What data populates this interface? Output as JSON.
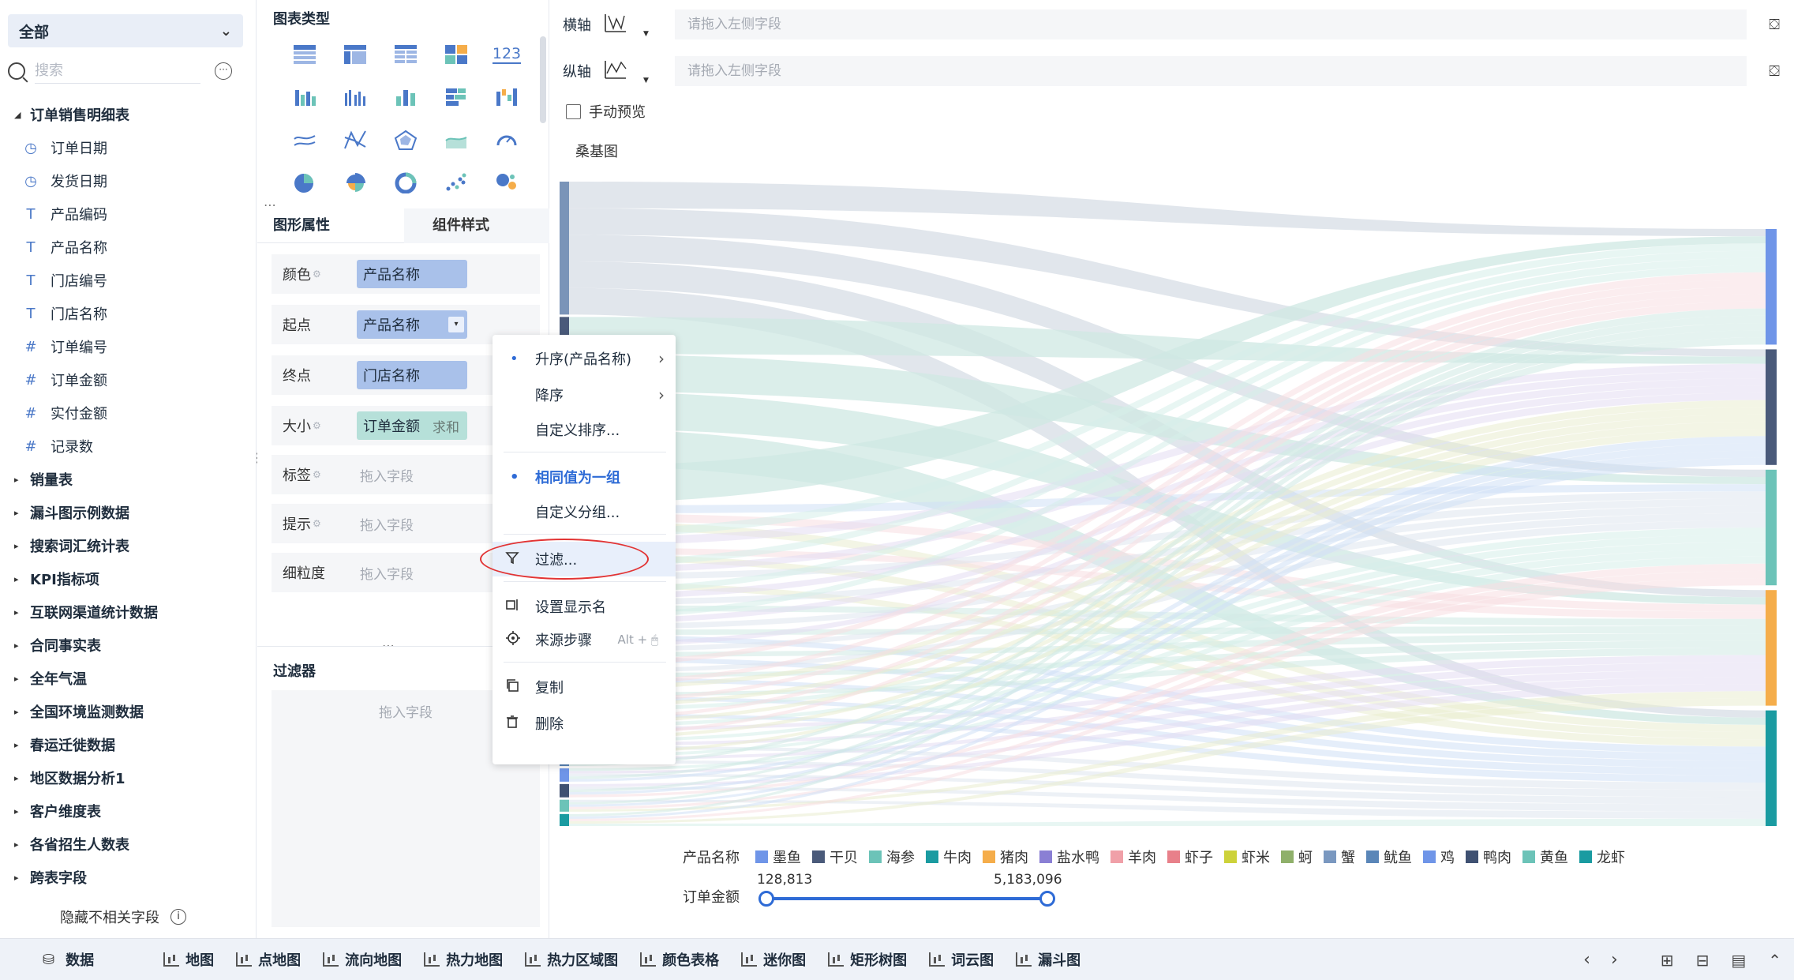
{
  "datasource": {
    "selected": "全部"
  },
  "search": {
    "placeholder": "搜索"
  },
  "tree": {
    "open_group": "订单销售明细表",
    "fields": [
      {
        "icon": "clock-icon",
        "glyph": "◷",
        "label": "订单日期"
      },
      {
        "icon": "clock-icon",
        "glyph": "◷",
        "label": "发货日期"
      },
      {
        "icon": "text-type-icon",
        "glyph": "T",
        "label": "产品编码"
      },
      {
        "icon": "text-type-icon",
        "glyph": "T",
        "label": "产品名称"
      },
      {
        "icon": "text-type-icon",
        "glyph": "T",
        "label": "门店编号"
      },
      {
        "icon": "text-type-icon",
        "glyph": "T",
        "label": "门店名称"
      },
      {
        "icon": "number-type-icon",
        "glyph": "#",
        "label": "订单编号"
      },
      {
        "icon": "number-type-icon",
        "glyph": "#",
        "label": "订单金额"
      },
      {
        "icon": "number-type-icon",
        "glyph": "#",
        "label": "实付金额"
      },
      {
        "icon": "number-type-icon",
        "glyph": "#",
        "label": "记录数"
      }
    ],
    "groups": [
      "销量表",
      "漏斗图示例数据",
      "搜索词汇统计表",
      "KPI指标项",
      "互联网渠道统计数据",
      "合同事实表",
      "全年气温",
      "全国环境监测数据",
      "春运迁徙数据",
      "地区数据分析1",
      "客户维度表",
      "各省招生人数表",
      "跨表字段"
    ]
  },
  "hide_irrelevant": "隐藏不相关字段",
  "chart_types": {
    "title": "图表类型",
    "kpi_label": "123"
  },
  "props": {
    "tab_active": "图形属性",
    "tab_inactive": "组件样式",
    "rows": {
      "color": {
        "label": "颜色",
        "value": "产品名称"
      },
      "start": {
        "label": "起点",
        "value": "产品名称"
      },
      "end": {
        "label": "终点",
        "value": "门店名称"
      },
      "size": {
        "label": "大小",
        "value": "订单金额",
        "agg": "求和"
      },
      "tag": {
        "label": "标签",
        "placeholder": "拖入字段"
      },
      "tip": {
        "label": "提示",
        "placeholder": "拖入字段"
      },
      "grain": {
        "label": "细粒度",
        "placeholder": "拖入字段"
      }
    }
  },
  "filter_panel": {
    "title": "过滤器",
    "placeholder": "拖入字段"
  },
  "context_menu": {
    "sort_asc": "升序(产品名称)",
    "sort_desc": "降序",
    "custom_sort": "自定义排序...",
    "same_group": "相同值为一组",
    "custom_group": "自定义分组...",
    "filter": "过滤...",
    "rename": "设置显示名",
    "source_step": "来源步骤",
    "source_shortcut": "Alt +",
    "copy": "复制",
    "delete": "删除"
  },
  "axes": {
    "x_label": "横轴",
    "y_label": "纵轴",
    "placeholder": "请拖入左侧字段"
  },
  "manual_preview": "手动预览",
  "chart_data": {
    "type": "sankey",
    "title": "桑基图",
    "legend_title": "产品名称",
    "legend": [
      {
        "name": "墨鱼",
        "color": "#6f95e8"
      },
      {
        "name": "干贝",
        "color": "#4a5a7a"
      },
      {
        "name": "海参",
        "color": "#6cc3b8"
      },
      {
        "name": "牛肉",
        "color": "#1a9ba1"
      },
      {
        "name": "猪肉",
        "color": "#f5ad4a"
      },
      {
        "name": "盐水鸭",
        "color": "#8a7fd4"
      },
      {
        "name": "羊肉",
        "color": "#f0a0a8"
      },
      {
        "name": "虾子",
        "color": "#e8808a"
      },
      {
        "name": "虾米",
        "color": "#cdd23a"
      },
      {
        "name": "蚵",
        "color": "#8fb06a"
      },
      {
        "name": "蟹",
        "color": "#7a98c0"
      },
      {
        "name": "鱿鱼",
        "color": "#5a86b8"
      },
      {
        "name": "鸡",
        "color": "#6f95e8"
      },
      {
        "name": "鸭肉",
        "color": "#3f5172"
      },
      {
        "name": "黄鱼",
        "color": "#6cc3b8"
      },
      {
        "name": "龙虾",
        "color": "#1a9ba1"
      }
    ],
    "size_field": "订单金额",
    "range_min": "128,813",
    "range_max": "5,183,096",
    "target_colors": [
      "#6f95e8",
      "#4a5a7a",
      "#6cc3b8",
      "#f5ad4a",
      "#1a9ba1"
    ]
  },
  "bottom_tabs": {
    "data": "数据",
    "tabs": [
      "地图",
      "点地图",
      "流向地图",
      "热力地图",
      "热力区域图",
      "颜色表格",
      "迷你图",
      "矩形树图",
      "词云图",
      "漏斗图"
    ]
  }
}
